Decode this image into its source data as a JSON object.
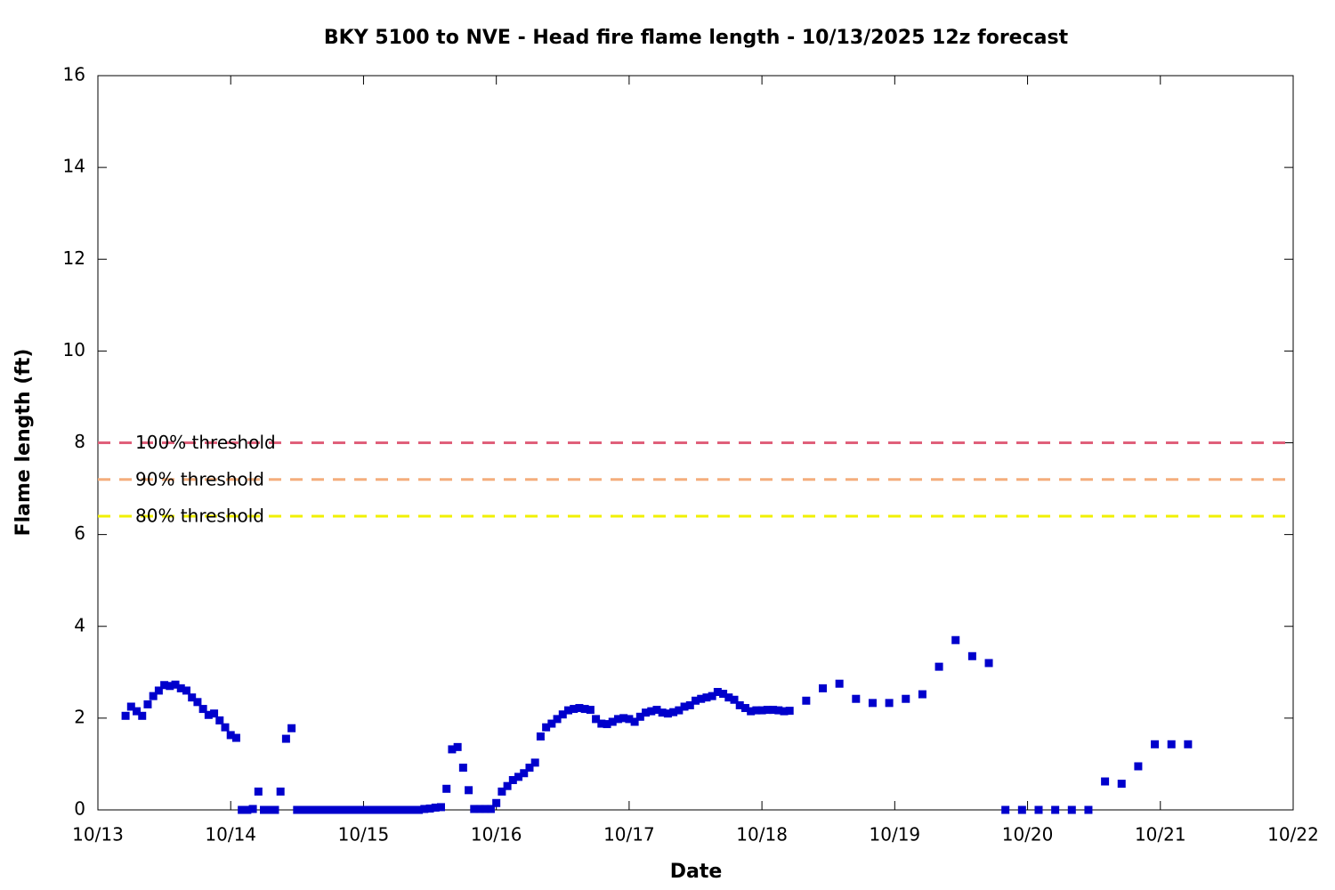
{
  "chart_data": {
    "type": "scatter",
    "title": "BKY 5100 to NVE - Head fire flame length - 10/13/2025 12z forecast",
    "xlabel": "Date",
    "ylabel": "Flame length (ft)",
    "color": "#0000cc",
    "x": [
      5,
      6,
      7,
      8,
      9,
      10,
      11,
      12,
      13,
      14,
      15,
      16,
      17,
      18,
      19,
      20,
      21,
      22,
      23,
      24,
      25,
      26,
      27,
      28,
      29,
      30,
      31,
      32,
      33,
      34,
      35,
      36,
      37,
      38,
      39,
      40,
      41,
      42,
      43,
      44,
      45,
      46,
      47,
      48,
      49,
      50,
      51,
      52,
      53,
      54,
      55,
      56,
      57,
      58,
      59,
      60,
      61,
      62,
      63,
      64,
      65,
      66,
      67,
      68,
      69,
      70,
      71,
      72,
      73,
      74,
      75,
      76,
      77,
      78,
      79,
      80,
      81,
      82,
      83,
      84,
      85,
      86,
      87,
      88,
      89,
      90,
      91,
      92,
      93,
      94,
      95,
      96,
      97,
      98,
      99,
      100,
      101,
      102,
      103,
      104,
      105,
      106,
      107,
      108,
      109,
      110,
      111,
      112,
      113,
      114,
      115,
      116,
      117,
      118,
      119,
      120,
      121,
      122,
      123,
      124,
      125,
      128,
      131,
      134,
      137,
      140,
      143,
      146,
      149,
      152,
      155,
      158,
      161,
      164,
      167,
      170,
      173,
      176,
      179,
      182,
      185,
      188,
      191,
      194,
      197
    ],
    "values": [
      2.05,
      2.25,
      2.15,
      2.05,
      2.3,
      2.48,
      2.6,
      2.72,
      2.7,
      2.73,
      2.65,
      2.6,
      2.45,
      2.35,
      2.2,
      2.07,
      2.1,
      1.95,
      1.8,
      1.63,
      1.57,
      0,
      0,
      0.02,
      0.4,
      0,
      0,
      0,
      0.4,
      1.55,
      1.78,
      0,
      0,
      0,
      0,
      0,
      0,
      0,
      0,
      0,
      0,
      0,
      0,
      0,
      0,
      0,
      0,
      0,
      0,
      0,
      0,
      0,
      0,
      0,
      0.02,
      0.03,
      0.05,
      0.06,
      0.46,
      1.32,
      1.37,
      0.92,
      0.43,
      0.02,
      0.02,
      0.02,
      0.02,
      0.15,
      0.4,
      0.52,
      0.65,
      0.72,
      0.8,
      0.92,
      1.03,
      1.6,
      1.8,
      1.88,
      1.98,
      2.08,
      2.17,
      2.2,
      2.22,
      2.2,
      2.18,
      1.98,
      1.88,
      1.87,
      1.92,
      1.98,
      2.0,
      1.98,
      1.92,
      2.03,
      2.12,
      2.15,
      2.18,
      2.12,
      2.1,
      2.13,
      2.17,
      2.25,
      2.28,
      2.38,
      2.42,
      2.45,
      2.48,
      2.57,
      2.53,
      2.45,
      2.4,
      2.28,
      2.22,
      2.15,
      2.17,
      2.17,
      2.18,
      2.18,
      2.17,
      2.15,
      2.16,
      2.38,
      2.65,
      2.75,
      2.42,
      2.33,
      2.33,
      2.42,
      2.52,
      3.12,
      3.7,
      3.35,
      3.2,
      0,
      0,
      0,
      0,
      0,
      0,
      0.62,
      0.57,
      0.95,
      1.43,
      1.43,
      1.43
    ],
    "thresholds": [
      {
        "label": "100% threshold",
        "value": 8,
        "color": "#e0607a"
      },
      {
        "label": "90% threshold",
        "value": 7.2,
        "color": "#f4ad7c"
      },
      {
        "label": "80% threshold",
        "value": 6.4,
        "color": "#f0f000"
      }
    ],
    "xlim": [
      0,
      216
    ],
    "xticks": [
      {
        "value": 0,
        "label": "10/13"
      },
      {
        "value": 24,
        "label": "10/14"
      },
      {
        "value": 48,
        "label": "10/15"
      },
      {
        "value": 72,
        "label": "10/16"
      },
      {
        "value": 96,
        "label": "10/17"
      },
      {
        "value": 120,
        "label": "10/18"
      },
      {
        "value": 144,
        "label": "10/19"
      },
      {
        "value": 168,
        "label": "10/20"
      },
      {
        "value": 192,
        "label": "10/21"
      },
      {
        "value": 216,
        "label": "10/22"
      }
    ],
    "ylim": [
      0,
      16
    ],
    "yticks": [
      0,
      2,
      4,
      6,
      8,
      10,
      12,
      14,
      16
    ]
  }
}
